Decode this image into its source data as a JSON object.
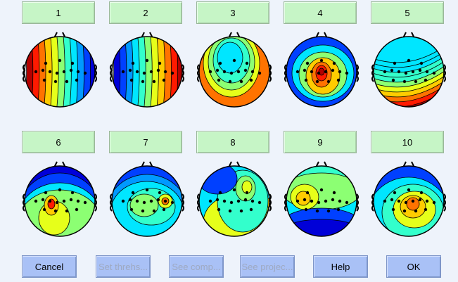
{
  "components": [
    {
      "label": "1",
      "color": "#1f77b4"
    },
    {
      "label": "2"
    },
    {
      "label": "3"
    },
    {
      "label": "4"
    },
    {
      "label": "5"
    },
    {
      "label": "6"
    },
    {
      "label": "7"
    },
    {
      "label": "8"
    },
    {
      "label": "9"
    },
    {
      "label": "10"
    }
  ],
  "buttons": {
    "cancel": "Cancel",
    "set_threshold": "Set threhs...",
    "see_components": "See comp...",
    "see_projection": "See projec...",
    "help": "Help",
    "ok": "OK"
  },
  "colors": {
    "component_button": "#c6f5c6",
    "action_button": "#a9c1f6",
    "background": "#eef3fb"
  }
}
